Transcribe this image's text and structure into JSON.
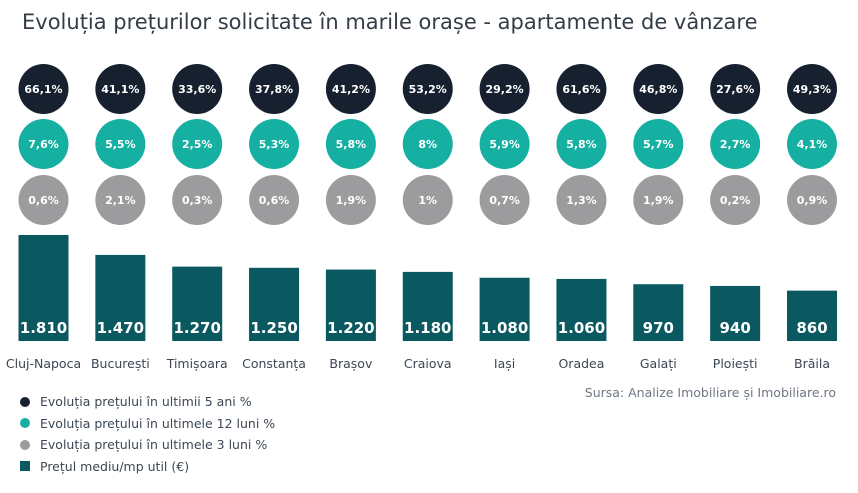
{
  "title": "Evoluția prețurilor solicitate în marile orașe - apartamente de vânzare",
  "source": "Sursa: Analize Imobiliare și Imobiliare.ro",
  "colors": {
    "five_year": "#16202f",
    "twelve_month": "#16b0a2",
    "three_month": "#9c9c9e",
    "bar": "#0a5960"
  },
  "legend": [
    {
      "label": "Evoluția prețului în ultimii 5 ani %",
      "shape": "dot",
      "color_key": "five_year"
    },
    {
      "label": "Evoluția prețului în ultimele 12 luni %",
      "shape": "dot",
      "color_key": "twelve_month"
    },
    {
      "label": "Evoluția prețului în ultimele 3 luni %",
      "shape": "dot",
      "color_key": "three_month"
    },
    {
      "label": "Prețul mediu/mp util (€)",
      "shape": "square",
      "color_key": "bar"
    }
  ],
  "chart_data": {
    "type": "bar",
    "categories": [
      "Cluj-Napoca",
      "București",
      "Timișoara",
      "Constanța",
      "Brașov",
      "Craiova",
      "Iași",
      "Oradea",
      "Galați",
      "Ploiești",
      "Brăila"
    ],
    "series": [
      {
        "name": "Prețul mediu/mp util (€)",
        "values": [
          1810,
          1470,
          1270,
          1250,
          1220,
          1180,
          1080,
          1060,
          970,
          940,
          860
        ]
      }
    ],
    "bar_labels": [
      "1.810",
      "1.470",
      "1.270",
      "1.250",
      "1.220",
      "1.180",
      "1.080",
      "1.060",
      "970",
      "940",
      "860"
    ],
    "indicators": [
      {
        "name": "Evoluția prețului în ultimii 5 ani %",
        "color_key": "five_year",
        "values": [
          66.1,
          41.1,
          33.6,
          37.8,
          41.2,
          53.2,
          29.2,
          61.6,
          46.8,
          27.6,
          49.3
        ],
        "labels": [
          "66,1%",
          "41,1%",
          "33,6%",
          "37,8%",
          "41,2%",
          "53,2%",
          "29,2%",
          "61,6%",
          "46,8%",
          "27,6%",
          "49,3%"
        ]
      },
      {
        "name": "Evoluția prețului în ultimele 12 luni %",
        "color_key": "twelve_month",
        "values": [
          7.6,
          5.5,
          2.5,
          5.3,
          5.8,
          8,
          5.9,
          5.8,
          5.7,
          2.7,
          4.1
        ],
        "labels": [
          "7,6%",
          "5,5%",
          "2,5%",
          "5,3%",
          "5,8%",
          "8%",
          "5,9%",
          "5,8%",
          "5,7%",
          "2,7%",
          "4,1%"
        ]
      },
      {
        "name": "Evoluția prețului în ultimele 3 luni %",
        "color_key": "three_month",
        "values": [
          0.6,
          2.1,
          0.3,
          0.6,
          1.9,
          1,
          0.7,
          1.3,
          1.9,
          0.2,
          0.9
        ],
        "labels": [
          "0,6%",
          "2,1%",
          "0,3%",
          "0,6%",
          "1,9%",
          "1%",
          "0,7%",
          "1,3%",
          "1,9%",
          "0,2%",
          "0,9%"
        ]
      }
    ],
    "ylim": [
      0,
      1810
    ],
    "grid": false,
    "legend_position": "bottom-left"
  }
}
